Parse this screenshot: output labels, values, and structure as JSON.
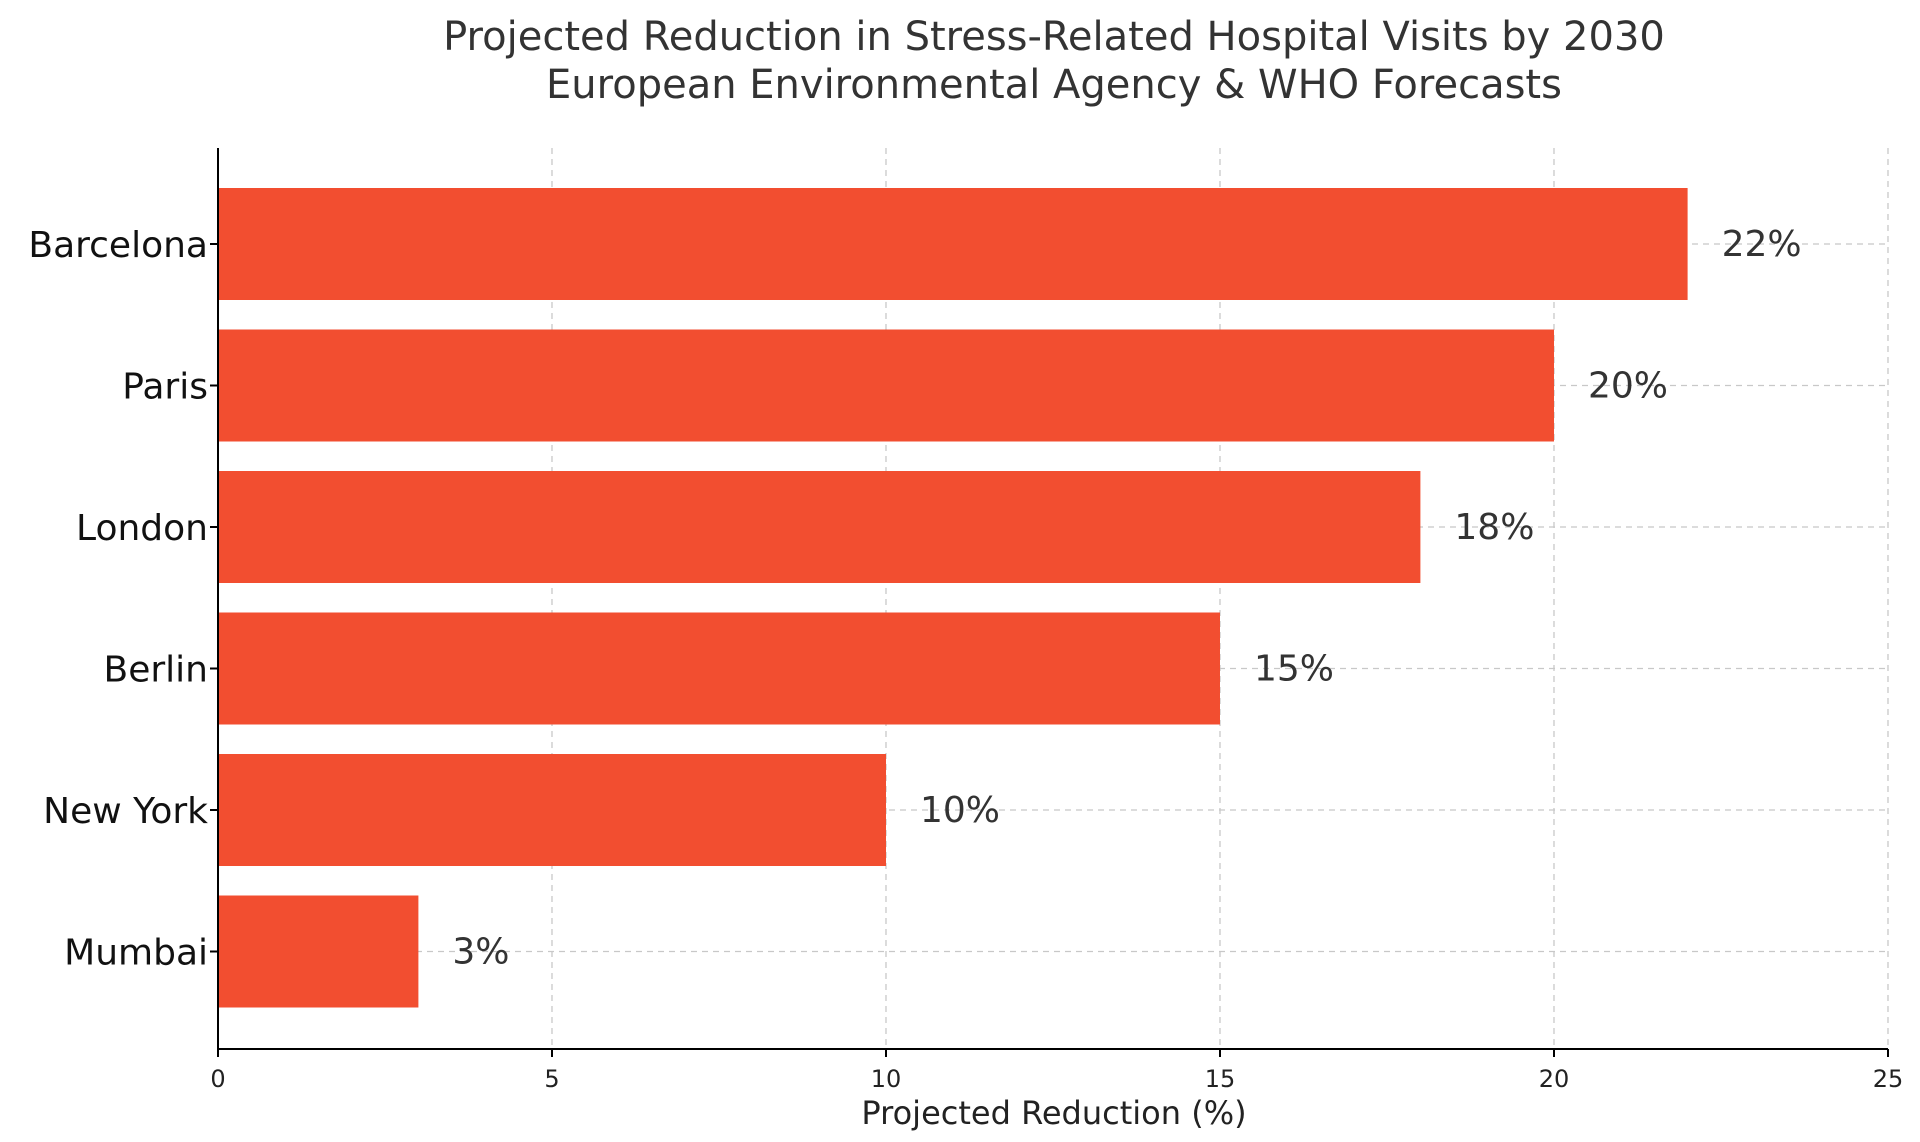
{
  "chart_data": {
    "type": "bar",
    "orientation": "horizontal",
    "title": "Projected Reduction in Stress-Related Hospital Visits by 2030",
    "subtitle": "European Environmental Agency & WHO Forecasts",
    "xlabel": "Projected Reduction (%)",
    "ylabel": "",
    "xlim": [
      0,
      25
    ],
    "xticks": [
      0,
      5,
      10,
      15,
      20,
      25
    ],
    "grid": true,
    "bar_color": "#f24e30",
    "categories": [
      "Barcelona",
      "Paris",
      "London",
      "Berlin",
      "New York",
      "Mumbai"
    ],
    "values": [
      22,
      20,
      18,
      15,
      10,
      3
    ],
    "data_labels": [
      "22%",
      "20%",
      "18%",
      "15%",
      "10%",
      "3%"
    ]
  }
}
